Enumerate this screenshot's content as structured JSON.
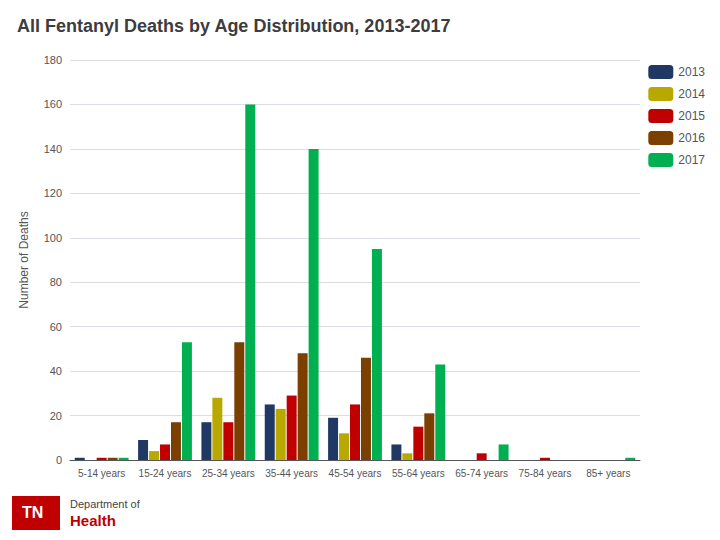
{
  "chart_data": {
    "type": "bar",
    "title": "All Fentanyl Deaths by Age Distribution, 2013-2017",
    "ylabel": "Number of Deaths",
    "categories": [
      "5-14 years",
      "15-24 years",
      "25-34 years",
      "35-44 years",
      "45-54 years",
      "55-64 years",
      "65-74 years",
      "75-84 years",
      "85+ years"
    ],
    "series": [
      {
        "name": "2013",
        "color": "#1f3864",
        "values": [
          1,
          9,
          17,
          25,
          19,
          7,
          0,
          0,
          0
        ]
      },
      {
        "name": "2014",
        "color": "#b8a800",
        "values": [
          0,
          4,
          28,
          23,
          12,
          3,
          0,
          0,
          0
        ]
      },
      {
        "name": "2015",
        "color": "#c00000",
        "values": [
          1,
          7,
          17,
          29,
          25,
          15,
          3,
          1,
          0
        ]
      },
      {
        "name": "2016",
        "color": "#7b3f00",
        "values": [
          1,
          17,
          53,
          48,
          46,
          21,
          0,
          0,
          0
        ]
      },
      {
        "name": "2017",
        "color": "#00b050",
        "values": [
          1,
          53,
          160,
          140,
          95,
          43,
          7,
          0,
          1
        ]
      }
    ],
    "ylim": [
      0,
      180
    ],
    "yticks": [
      0,
      20,
      40,
      60,
      80,
      100,
      120,
      140,
      160,
      180
    ],
    "grid": true,
    "legend": "upper right",
    "annotations": [
      "TN",
      "Department of",
      "Health"
    ]
  }
}
